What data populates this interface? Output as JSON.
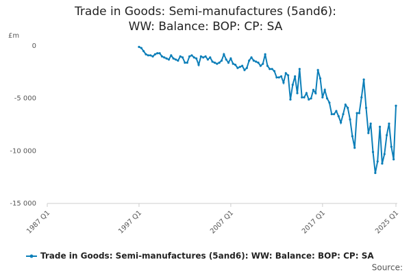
{
  "chart_data": {
    "type": "line",
    "title": "Trade in Goods: Semi-manufactures (5and6): WW: Balance: BOP: CP: SA",
    "y_unit": "£m",
    "source": "Source:",
    "xlim": [
      1987,
      2025
    ],
    "xticks": [
      {
        "value": 1987,
        "label": "1987 Q1"
      },
      {
        "value": 1997,
        "label": "1997 Q1"
      },
      {
        "value": 2007,
        "label": "2007 Q1"
      },
      {
        "value": 2017,
        "label": "2017 Q1"
      },
      {
        "value": 2025,
        "label": "2025 Q1"
      }
    ],
    "ylim": [
      -15000,
      0
    ],
    "yticks": [
      {
        "value": -15000,
        "label": "-15 000"
      },
      {
        "value": -10000,
        "label": "-10 000"
      },
      {
        "value": -5000,
        "label": "-5 000"
      },
      0
    ],
    "grid": false,
    "legend": "bottom",
    "x": [
      1997,
      1997.25,
      1997.5,
      1997.75,
      1998,
      1998.25,
      1998.5,
      1998.75,
      1999,
      1999.25,
      1999.5,
      1999.75,
      2000,
      2000.25,
      2000.5,
      2000.75,
      2001,
      2001.25,
      2001.5,
      2001.75,
      2002,
      2002.25,
      2002.5,
      2002.75,
      2003,
      2003.25,
      2003.5,
      2003.75,
      2004,
      2004.25,
      2004.5,
      2004.75,
      2005,
      2005.25,
      2005.5,
      2005.75,
      2006,
      2006.25,
      2006.5,
      2006.75,
      2007,
      2007.25,
      2007.5,
      2007.75,
      2008,
      2008.25,
      2008.5,
      2008.75,
      2009,
      2009.25,
      2009.5,
      2009.75,
      2010,
      2010.25,
      2010.5,
      2010.75,
      2011,
      2011.25,
      2011.5,
      2011.75,
      2012,
      2012.25,
      2012.5,
      2012.75,
      2013,
      2013.25,
      2013.5,
      2013.75,
      2014,
      2014.25,
      2014.5,
      2014.75,
      2015,
      2015.25,
      2015.5,
      2015.75,
      2016,
      2016.25,
      2016.5,
      2016.75,
      2017,
      2017.25,
      2017.5,
      2017.75,
      2018,
      2018.25,
      2018.5,
      2018.75,
      2019,
      2019.25,
      2019.5,
      2019.75,
      2020,
      2020.25,
      2020.5,
      2020.75,
      2021,
      2021.25,
      2021.5,
      2021.75,
      2022,
      2022.25,
      2022.5,
      2022.75,
      2023,
      2023.25,
      2023.5,
      2023.75,
      2024,
      2024.25,
      2024.5,
      2024.75,
      2025
    ],
    "series": [
      {
        "name": "Trade in Goods: Semi-manufactures (5and6): WW: Balance: BOP: CP: SA",
        "color": "#0b7eb8",
        "values": [
          -100,
          -200,
          -500,
          -800,
          -900,
          -900,
          -1000,
          -800,
          -700,
          -700,
          -1000,
          -1100,
          -1200,
          -1300,
          -900,
          -1200,
          -1300,
          -1400,
          -1000,
          -1100,
          -1600,
          -1600,
          -1000,
          -900,
          -1100,
          -1200,
          -1800,
          -1000,
          -1100,
          -1000,
          -1300,
          -1100,
          -1500,
          -1600,
          -1700,
          -1600,
          -1400,
          -800,
          -1300,
          -1600,
          -1200,
          -1700,
          -1800,
          -2100,
          -2000,
          -1900,
          -2300,
          -2100,
          -1400,
          -1100,
          -1400,
          -1500,
          -1600,
          -1900,
          -1700,
          -800,
          -1900,
          -2200,
          -2200,
          -2400,
          -3000,
          -3000,
          -2900,
          -3500,
          -2600,
          -2800,
          -5100,
          -3700,
          -2900,
          -4500,
          -2200,
          -4900,
          -4900,
          -4500,
          -5100,
          -5000,
          -4200,
          -4500,
          -2300,
          -3100,
          -4900,
          -4200,
          -5000,
          -5400,
          -6500,
          -6500,
          -6200,
          -6700,
          -7300,
          -6500,
          -5600,
          -5900,
          -7000,
          -8600,
          -9700,
          -6400,
          -6400,
          -4900,
          -3200,
          -5900,
          -8300,
          -7400,
          -10100,
          -12100,
          -11000,
          -7700,
          -11200,
          -10300,
          -8500,
          -7400,
          -9600,
          -10800,
          -5700
        ]
      }
    ]
  }
}
